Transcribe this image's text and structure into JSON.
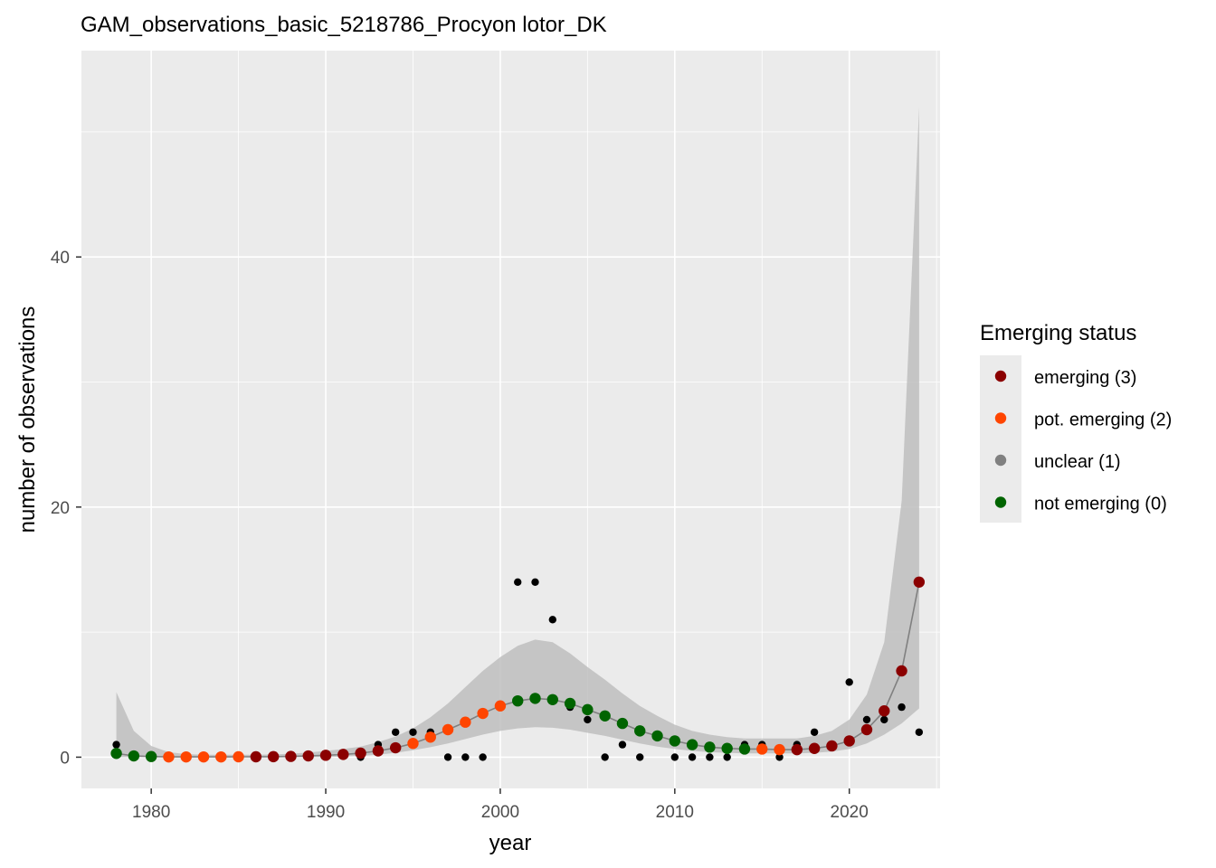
{
  "chart_data": {
    "type": "scatter",
    "title": "GAM_observations_basic_5218786_Procyon lotor_DK",
    "xlabel": "year",
    "ylabel": "number of observations",
    "xlim": [
      1976,
      2025.2
    ],
    "ylim": [
      -2.5,
      56.5
    ],
    "x_ticks": [
      1980,
      1990,
      2000,
      2010,
      2020
    ],
    "x_tick_labels": [
      "1980",
      "1990",
      "2000",
      "2010",
      "2020"
    ],
    "y_ticks": [
      0,
      20,
      40
    ],
    "y_tick_labels": [
      "0",
      "20",
      "40"
    ],
    "grid": true,
    "legend_position": "right",
    "legend": {
      "title": "Emerging status",
      "items": [
        {
          "label": "emerging (3)",
          "color": "#8B0000"
        },
        {
          "label": "pot. emerging (2)",
          "color": "#FF4500"
        },
        {
          "label": "unclear (1)",
          "color": "#808080"
        },
        {
          "label": "not emerging (0)",
          "color": "#006400"
        }
      ]
    },
    "colors": {
      "panel": "#EBEBEB",
      "grid": "#FFFFFF",
      "ribbon": "#BEBEBE",
      "fit_line": "#808080",
      "observed": "#000000",
      "3": "#8B0000",
      "2": "#FF4500",
      "1": "#808080",
      "0": "#006400"
    },
    "observed": {
      "name": "observations",
      "x": [
        1978,
        1992,
        1993,
        1994,
        1995,
        1996,
        1997,
        1998,
        1999,
        2001,
        2002,
        2003,
        2004,
        2005,
        2006,
        2007,
        2008,
        2010,
        2011,
        2012,
        2013,
        2014,
        2015,
        2016,
        2017,
        2018,
        2020,
        2021,
        2022,
        2023,
        2024
      ],
      "y": [
        1,
        0,
        1,
        2,
        2,
        2,
        0,
        0,
        0,
        14,
        14,
        11,
        4,
        3,
        0,
        1,
        0,
        0,
        0,
        0,
        0,
        1,
        1,
        0,
        1,
        2,
        6,
        3,
        3,
        4,
        2
      ]
    },
    "fit": {
      "name": "GAM fit",
      "x": [
        1978,
        1979,
        1980,
        1981,
        1982,
        1983,
        1984,
        1985,
        1986,
        1987,
        1988,
        1989,
        1990,
        1991,
        1992,
        1993,
        1994,
        1995,
        1996,
        1997,
        1998,
        1999,
        2000,
        2001,
        2002,
        2003,
        2004,
        2005,
        2006,
        2007,
        2008,
        2009,
        2010,
        2011,
        2012,
        2013,
        2014,
        2015,
        2016,
        2017,
        2018,
        2019,
        2020,
        2021,
        2022,
        2023,
        2024
      ],
      "y": [
        0.3,
        0.1,
        0.05,
        0.02,
        0.02,
        0.02,
        0.02,
        0.03,
        0.03,
        0.04,
        0.06,
        0.1,
        0.15,
        0.22,
        0.32,
        0.5,
        0.75,
        1.1,
        1.6,
        2.2,
        2.8,
        3.5,
        4.1,
        4.5,
        4.7,
        4.6,
        4.3,
        3.8,
        3.3,
        2.7,
        2.1,
        1.7,
        1.3,
        1.0,
        0.8,
        0.7,
        0.65,
        0.65,
        0.6,
        0.6,
        0.7,
        0.9,
        1.3,
        2.2,
        3.7,
        6.9,
        14.0
      ],
      "status": [
        0,
        0,
        0,
        2,
        2,
        2,
        2,
        2,
        3,
        3,
        3,
        3,
        3,
        3,
        3,
        3,
        3,
        2,
        2,
        2,
        2,
        2,
        2,
        0,
        0,
        0,
        0,
        0,
        0,
        0,
        0,
        0,
        0,
        0,
        0,
        0,
        0,
        2,
        2,
        3,
        3,
        3,
        3,
        3,
        3,
        3,
        3
      ],
      "lower": [
        0,
        0,
        0,
        0,
        0,
        0,
        0,
        0,
        0,
        0,
        0,
        0,
        0,
        0.05,
        0.1,
        0.2,
        0.35,
        0.55,
        0.8,
        1.1,
        1.45,
        1.8,
        2.1,
        2.3,
        2.4,
        2.35,
        2.2,
        1.95,
        1.7,
        1.4,
        1.1,
        0.85,
        0.65,
        0.5,
        0.4,
        0.35,
        0.3,
        0.3,
        0.3,
        0.3,
        0.35,
        0.45,
        0.65,
        1.1,
        1.8,
        2.7,
        3.9
      ],
      "upper": [
        5.2,
        2.1,
        0.9,
        0.4,
        0.25,
        0.2,
        0.2,
        0.2,
        0.2,
        0.22,
        0.28,
        0.38,
        0.5,
        0.65,
        0.85,
        1.2,
        1.65,
        2.3,
        3.2,
        4.3,
        5.6,
        6.9,
        8.0,
        8.9,
        9.4,
        9.2,
        8.3,
        7.2,
        6.2,
        5.1,
        4.1,
        3.3,
        2.6,
        2.1,
        1.8,
        1.6,
        1.5,
        1.5,
        1.5,
        1.5,
        1.7,
        2.1,
        3.0,
        5.0,
        9.2,
        20.5,
        52.0
      ]
    }
  }
}
